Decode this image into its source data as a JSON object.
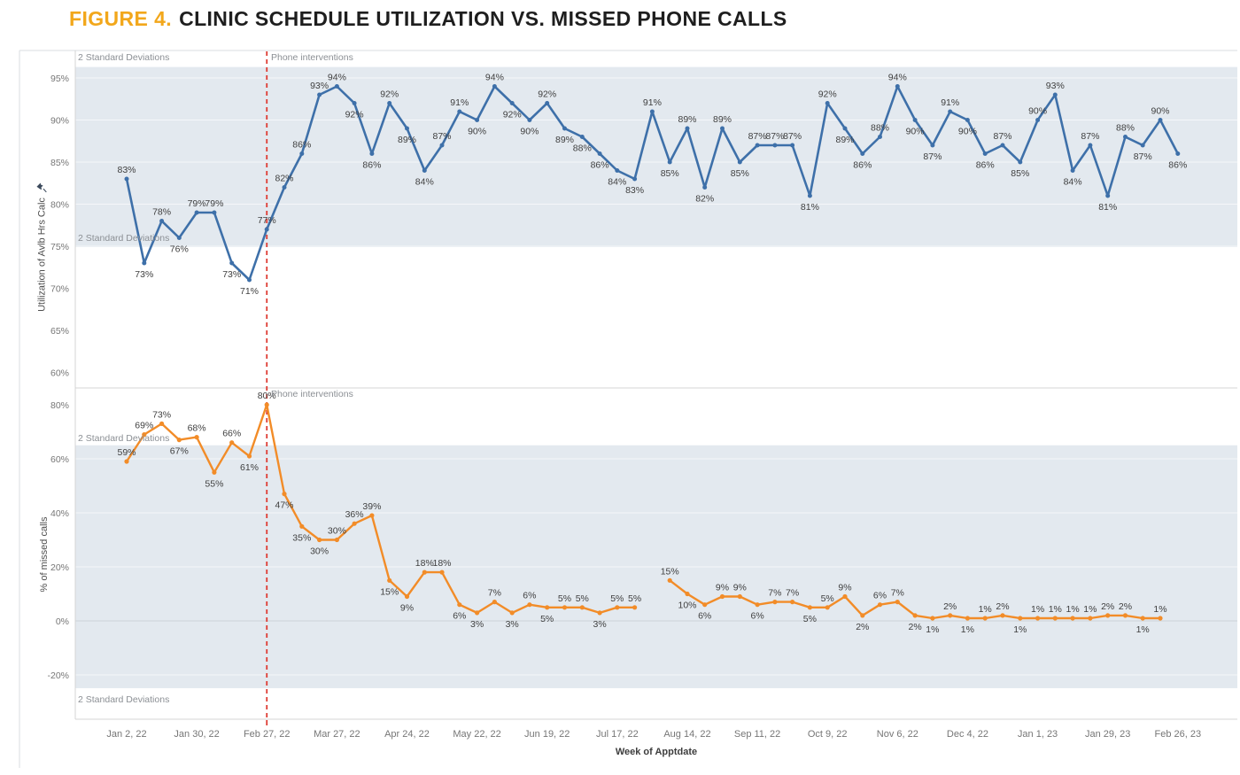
{
  "figure_label": "FIGURE 4.",
  "figure_title": "CLINIC SCHEDULE UTILIZATION VS. MISSED PHONE CALLS",
  "annotations": {
    "std_dev_label": "2 Standard Deviations",
    "intervention_label": "Phone interventions",
    "intervention_week_index": 9
  },
  "x_axis": {
    "title": "Week of Apptdate",
    "tick_labels": [
      "Jan 2, 22",
      "Jan 30, 22",
      "Feb 27, 22",
      "Mar 27, 22",
      "Apr 24, 22",
      "May 22, 22",
      "Jun 19, 22",
      "Jul 17, 22",
      "Aug 14, 22",
      "Sep 11, 22",
      "Oct 9, 22",
      "Nov 6, 22",
      "Dec 4, 22",
      "Jan 1, 23",
      "Jan 29, 23",
      "Feb 26, 23"
    ],
    "tick_weeks": [
      1,
      5,
      9,
      13,
      17,
      21,
      25,
      29,
      33,
      37,
      41,
      45,
      49,
      53,
      57,
      61
    ]
  },
  "chart_data": [
    {
      "type": "line",
      "title": "Clinic schedule utilization",
      "ylabel": "Utilization of Avlb Hrs Calc",
      "unit": "%",
      "yticks": [
        95,
        90,
        85,
        80,
        75,
        70,
        65,
        60
      ],
      "ylim": [
        60,
        95
      ],
      "grid": true,
      "color": "#3E70A9",
      "band": {
        "label": "2 Standard Deviations",
        "from": 74.9,
        "to": 96.3
      },
      "values": [
        83,
        73,
        78,
        76,
        79,
        79,
        73,
        71,
        77,
        82,
        86,
        93,
        94,
        92,
        86,
        92,
        89,
        84,
        87,
        91,
        90,
        94,
        92,
        90,
        92,
        89,
        88,
        86,
        84,
        83,
        91,
        85,
        89,
        82,
        89,
        85,
        87,
        87,
        87,
        81,
        92,
        89,
        86,
        88,
        94,
        90,
        87,
        91,
        90,
        86,
        87,
        85,
        90,
        93,
        84,
        87,
        81,
        88,
        87,
        90,
        86
      ]
    },
    {
      "type": "line",
      "title": "% of missed calls",
      "ylabel": "% of missed calls",
      "unit": "%",
      "yticks": [
        80,
        60,
        40,
        20,
        0,
        -20
      ],
      "ylim": [
        -20,
        80
      ],
      "grid": true,
      "color": "#F28C28",
      "band": {
        "label": "2 Standard Deviations",
        "from": -24.9,
        "to": 65.0
      },
      "values": [
        59,
        69,
        73,
        67,
        68,
        55,
        66,
        61,
        80,
        47,
        35,
        30,
        30,
        36,
        39,
        15,
        9,
        18,
        18,
        6,
        3,
        7,
        3,
        6,
        5,
        5,
        5,
        3,
        5,
        5,
        null,
        15,
        10,
        6,
        9,
        9,
        6,
        7,
        7,
        5,
        5,
        9,
        2,
        6,
        7,
        2,
        1,
        2,
        1,
        1,
        2,
        1,
        1,
        1,
        1,
        1,
        2,
        2,
        1,
        1,
        null
      ]
    }
  ],
  "colors": {
    "accent_gold": "#F2A71B",
    "title_text": "#1E1E1E",
    "blue_line": "#3E70A9",
    "orange_line": "#F28C28",
    "red_intervention_line": "#DE3B33",
    "band_fill": "#E3E9EF",
    "axis_tick_text": "#767676",
    "data_label_text": "#3F3F3F",
    "annotation_text": "#8B8F94",
    "axis_line": "#D4D4D4"
  },
  "icons": {
    "pin_icon": "pushpin"
  }
}
